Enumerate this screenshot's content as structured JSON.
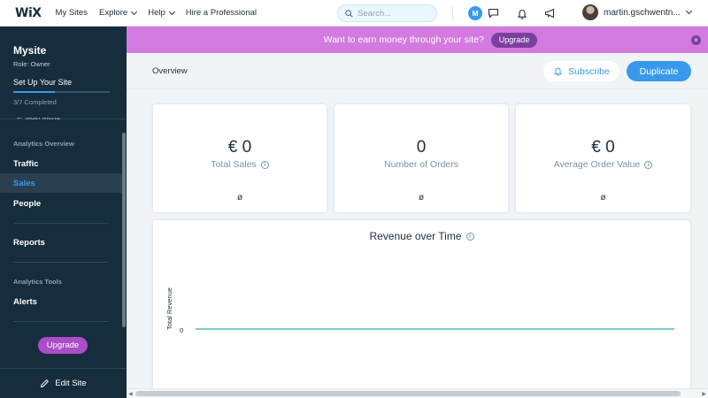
{
  "topbar": {
    "logo": "WiX",
    "nav": [
      {
        "label": "My Sites",
        "chevron": false
      },
      {
        "label": "Explore",
        "chevron": true
      },
      {
        "label": "Help",
        "chevron": true
      },
      {
        "label": "Hire a Professional",
        "chevron": false
      }
    ],
    "search_placeholder": "Search...",
    "avatar_initial": "M",
    "user_name": "martin.gschwentn..."
  },
  "banner": {
    "text": "Want to earn money through your site?",
    "upgrade_label": "Upgrade",
    "close_label": "×"
  },
  "sidebar": {
    "site_name": "Mysite",
    "role": "Role: Owner",
    "setup_label": "Set Up Your Site",
    "setup_progress": 0.43,
    "setup_completed": "3/7 Completed",
    "main_menu_label": "← Main Menu",
    "section_analytics": "Analytics Overview",
    "items": [
      {
        "label": "Traffic",
        "active": false
      },
      {
        "label": "Sales",
        "active": true
      },
      {
        "label": "People",
        "active": false
      },
      {
        "label": "Reports",
        "active": false
      }
    ],
    "section_tools": "Analytics Tools",
    "alerts_label": "Alerts",
    "upgrade_label": "Upgrade",
    "edit_site_label": "Edit Site"
  },
  "header": {
    "overview_label": "Overview",
    "subscribe_label": "Subscribe",
    "duplicate_label": "Duplicate"
  },
  "kpis": [
    {
      "value": "€ 0",
      "label": "Total Sales",
      "empty": "ø"
    },
    {
      "value": "0",
      "label": "Number of Orders",
      "empty": "ø"
    },
    {
      "value": "€ 0",
      "label": "Average Order Value",
      "empty": "ø"
    }
  ],
  "chart_data": {
    "type": "line",
    "title": "Revenue over Time",
    "xlabel": "",
    "ylabel": "Total Revenue",
    "y_ticks": [
      "0"
    ],
    "series": [
      {
        "values": [
          0,
          0
        ]
      }
    ],
    "line_color": "#4fc3b0",
    "grid": false
  },
  "colors": {
    "accent": "#3899ec",
    "banner": "#d37ae0",
    "upgrade": "#aa4dc8",
    "sidebar": "#162d3d"
  }
}
